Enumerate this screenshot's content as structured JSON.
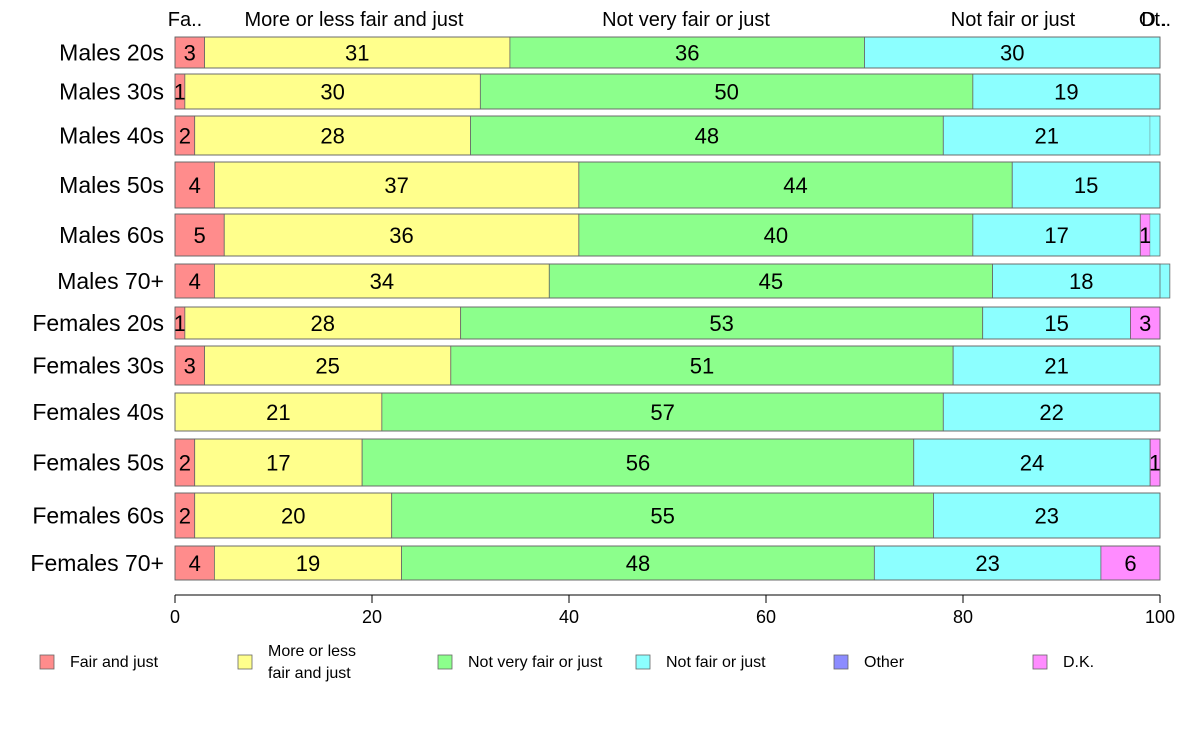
{
  "chart_data": {
    "type": "bar",
    "orientation": "horizontal",
    "stacked": true,
    "xlim": [
      0,
      100
    ],
    "x_ticks": [
      "0",
      "20",
      "40",
      "60",
      "80",
      "100"
    ],
    "categories": [
      "Males 20s",
      "Males 30s",
      "Males 40s",
      "Males 50s",
      "Males 60s",
      "Males 70+",
      "Females 20s",
      "Females 30s",
      "Females 40s",
      "Females 50s",
      "Females 60s",
      "Females 70+"
    ],
    "top_labels": [
      "Fa..",
      "More or less fair and just",
      "Not very fair or just",
      "Not fair or just",
      "Ot..",
      "D.."
    ],
    "series": [
      {
        "name": "Fair and just",
        "color": "#ff8c8c",
        "values": [
          3,
          1,
          2,
          4,
          5,
          4,
          1,
          3,
          0,
          2,
          2,
          4
        ]
      },
      {
        "name": "More or less fair and just",
        "color": "#ffff8c",
        "values": [
          31,
          30,
          28,
          37,
          36,
          34,
          28,
          25,
          21,
          17,
          20,
          19
        ]
      },
      {
        "name": "Not very fair or just",
        "color": "#8cff8c",
        "values": [
          36,
          50,
          48,
          44,
          40,
          45,
          53,
          51,
          57,
          56,
          55,
          48
        ]
      },
      {
        "name": "Not fair or just",
        "color": "#8cffff",
        "values": [
          30,
          19,
          21,
          15,
          17,
          18,
          15,
          21,
          22,
          24,
          23,
          23
        ]
      },
      {
        "name": "Other",
        "color": "#8c8cff",
        "values": [
          0,
          0,
          0,
          0,
          0,
          0,
          0,
          0,
          0,
          0,
          0,
          0
        ]
      },
      {
        "name": "D.K.",
        "color": "#ff8cff",
        "values": [
          0,
          0,
          0,
          0,
          1,
          0,
          3,
          0,
          0,
          1,
          0,
          6
        ]
      }
    ],
    "legend": {
      "placement": "bottom",
      "entries": [
        "Fair and just",
        "More or less fair and just",
        "Not very fair or just",
        "Not fair or just",
        "Other",
        "D.K."
      ]
    },
    "grid": false
  }
}
